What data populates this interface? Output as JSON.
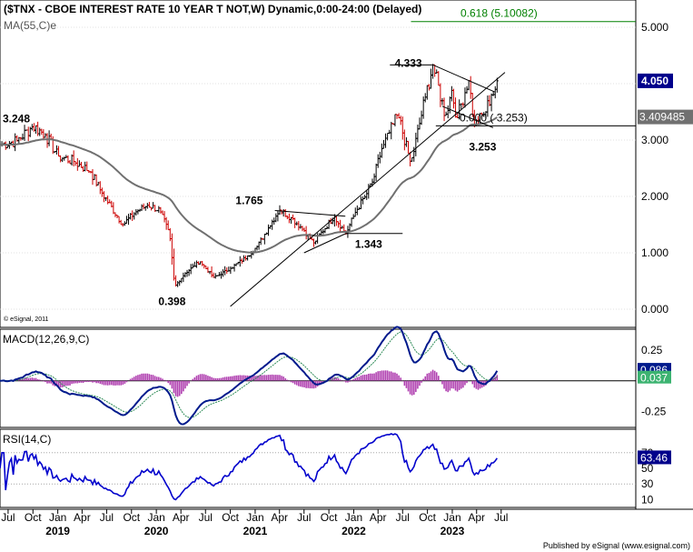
{
  "header": {
    "title": "($TNX - CBOE INTEREST RATE 10 YEAR T NOT,W) Dynamic,0:00-24:00 (Delayed)",
    "ma_label": "MA(55,C)e",
    "copyright": "© eSignal, 2011"
  },
  "footer": {
    "credit": "Published by eSignal (www.esignal.com)"
  },
  "colors": {
    "bull": "#000000",
    "bear": "#cc0000",
    "ma": "#707070",
    "macd": "#001a8c",
    "signal": "#2e8b57",
    "hist": "#b040b0",
    "rsi": "#0000cc",
    "fib": "#008000",
    "badge": "#00008b",
    "macd_badge": "#3cb371"
  },
  "panels": {
    "macd_label": "MACD(12,26,9,C)",
    "rsi_label": "RSI(14,C)"
  },
  "chart_data": [
    {
      "type": "candlestick",
      "title": "$TNX weekly",
      "ylim": [
        -0.1,
        5.3
      ],
      "y_ticks": [
        "5.000",
        "4.000",
        "3.000",
        "2.000",
        "1.000",
        "0.000"
      ],
      "x_ticks": [
        "Jul",
        "Oct",
        "Jan",
        "Apr",
        "Jul",
        "Oct",
        "Jan",
        "Apr",
        "Jul",
        "Oct",
        "Jan",
        "Apr",
        "Jul",
        "Oct",
        "Jan",
        "Apr",
        "Jul",
        "Oct",
        "Jan",
        "Apr",
        "Jul"
      ],
      "x_years": [
        "2019",
        "2020",
        "2021",
        "2022",
        "2023"
      ],
      "anchors": [
        {
          "date": "2018-06-01",
          "v": 2.92
        },
        {
          "date": "2018-08-01",
          "v": 2.98
        },
        {
          "date": "2018-10-01",
          "v": 3.248
        },
        {
          "date": "2018-11-15",
          "v": 3.1
        },
        {
          "date": "2019-01-01",
          "v": 2.72
        },
        {
          "date": "2019-03-01",
          "v": 2.62
        },
        {
          "date": "2019-05-01",
          "v": 2.45
        },
        {
          "date": "2019-06-15",
          "v": 2.05
        },
        {
          "date": "2019-08-30",
          "v": 1.5
        },
        {
          "date": "2019-10-15",
          "v": 1.72
        },
        {
          "date": "2019-12-01",
          "v": 1.85
        },
        {
          "date": "2020-01-15",
          "v": 1.75
        },
        {
          "date": "2020-02-20",
          "v": 1.3
        },
        {
          "date": "2020-03-09",
          "v": 0.398
        },
        {
          "date": "2020-04-15",
          "v": 0.63
        },
        {
          "date": "2020-06-10",
          "v": 0.85
        },
        {
          "date": "2020-08-01",
          "v": 0.56
        },
        {
          "date": "2020-10-01",
          "v": 0.72
        },
        {
          "date": "2020-12-01",
          "v": 0.93
        },
        {
          "date": "2021-01-10",
          "v": 1.12
        },
        {
          "date": "2021-02-20",
          "v": 1.45
        },
        {
          "date": "2021-03-31",
          "v": 1.765
        },
        {
          "date": "2021-05-15",
          "v": 1.62
        },
        {
          "date": "2021-07-01",
          "v": 1.4
        },
        {
          "date": "2021-08-05",
          "v": 1.17
        },
        {
          "date": "2021-10-20",
          "v": 1.65
        },
        {
          "date": "2021-12-03",
          "v": 1.343
        },
        {
          "date": "2022-01-10",
          "v": 1.75
        },
        {
          "date": "2022-02-15",
          "v": 2.02
        },
        {
          "date": "2022-03-15",
          "v": 2.3
        },
        {
          "date": "2022-04-15",
          "v": 2.85
        },
        {
          "date": "2022-05-10",
          "v": 3.1
        },
        {
          "date": "2022-06-14",
          "v": 3.45
        },
        {
          "date": "2022-08-01",
          "v": 2.57
        },
        {
          "date": "2022-09-20",
          "v": 3.7
        },
        {
          "date": "2022-10-21",
          "v": 4.333
        },
        {
          "date": "2022-12-07",
          "v": 3.42
        },
        {
          "date": "2022-12-30",
          "v": 3.88
        },
        {
          "date": "2023-01-19",
          "v": 3.38
        },
        {
          "date": "2023-03-02",
          "v": 4.09
        },
        {
          "date": "2023-03-24",
          "v": 3.253
        },
        {
          "date": "2023-05-01",
          "v": 3.47
        },
        {
          "date": "2023-05-26",
          "v": 3.8
        },
        {
          "date": "2023-06-09",
          "v": 3.9
        },
        {
          "date": "2023-06-16",
          "v": 4.05
        }
      ],
      "annotations": [
        {
          "label": "3.248",
          "date": "2018-10-01",
          "v": 3.248
        },
        {
          "label": "0.398",
          "date": "2020-03-09",
          "v": 0.398
        },
        {
          "label": "1.765",
          "date": "2021-03-31",
          "v": 1.765
        },
        {
          "label": "1.343",
          "date": "2021-12-03",
          "v": 1.343
        },
        {
          "label": "4.333",
          "date": "2022-10-21",
          "v": 4.333
        },
        {
          "label": "3.253",
          "date": "2023-03-24",
          "v": 3.253
        },
        {
          "label": "0.000 ( 3.253)",
          "v": 3.253
        },
        {
          "label": "0.618 (5.10082)",
          "v": 5.10082
        }
      ],
      "last_value": "4.050",
      "ma_value": "3.409485"
    },
    {
      "type": "line",
      "title": "MACD(12,26,9,C)",
      "ylim": [
        -0.38,
        0.42
      ],
      "y_ticks": [
        "0.25",
        "-0.25"
      ],
      "values": {
        "macd_last": "0.086",
        "hist_last": "0.037"
      }
    },
    {
      "type": "line",
      "title": "RSI(14,C)",
      "ylim": [
        0,
        100
      ],
      "y_ticks": [
        "70",
        "50",
        "30",
        "10"
      ],
      "last_value": "63.46"
    }
  ]
}
